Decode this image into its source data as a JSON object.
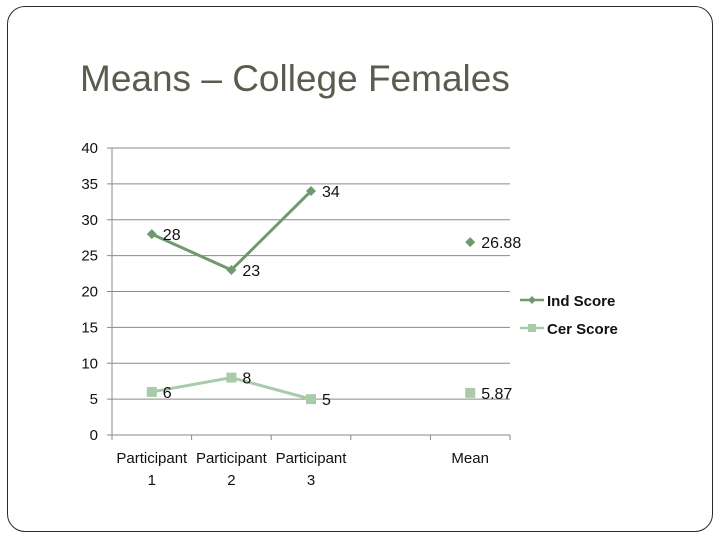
{
  "slide": {
    "title": "Means – College Females"
  },
  "chart_data": {
    "type": "line",
    "title": "",
    "xlabel": "",
    "ylabel": "",
    "ylim": [
      0,
      40
    ],
    "yticks": [
      0,
      5,
      10,
      15,
      20,
      25,
      30,
      35,
      40
    ],
    "grid": true,
    "legend_position": "right",
    "categories": [
      [
        "Participant",
        "1"
      ],
      [
        "Participant",
        "2"
      ],
      [
        "Participant",
        "3"
      ],
      [
        "",
        ""
      ],
      [
        "Mean",
        ""
      ]
    ],
    "series": [
      {
        "name": "Ind Score",
        "marker": "diamond",
        "color": "#6f9a6f",
        "values": [
          28,
          23,
          34,
          null,
          26.88
        ],
        "value_labels": [
          "28",
          "23",
          "34",
          "",
          "26.88"
        ]
      },
      {
        "name": "Cer Score",
        "marker": "square",
        "color": "#a9cba9",
        "values": [
          6,
          8,
          5,
          null,
          5.87
        ],
        "value_labels": [
          "6",
          "8",
          "5",
          "",
          "5.87"
        ]
      }
    ]
  }
}
